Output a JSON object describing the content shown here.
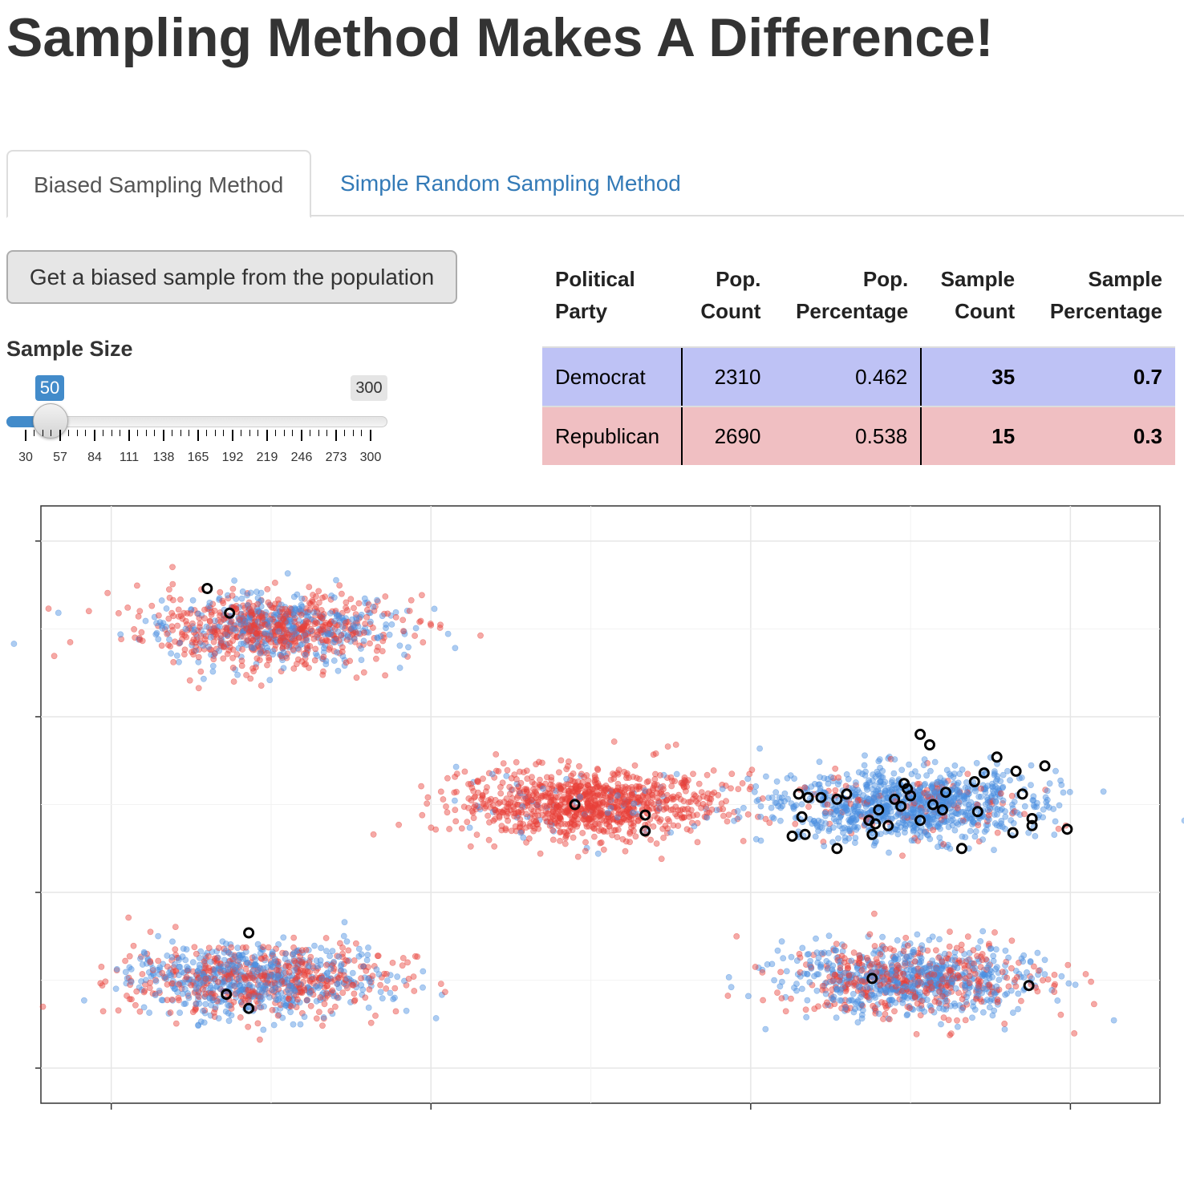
{
  "page": {
    "title": "Sampling Method Makes A Difference!"
  },
  "tabs": [
    {
      "label": "Biased Sampling Method",
      "active": true
    },
    {
      "label": "Simple Random Sampling Method",
      "active": false
    }
  ],
  "controls": {
    "button_label": "Get a biased sample from the population",
    "slider": {
      "label": "Sample Size",
      "value": 50,
      "value_text": "50",
      "max_text": "300",
      "min": 30,
      "max": 300,
      "tick_labels": [
        "30",
        "57",
        "84",
        "111",
        "138",
        "165",
        "192",
        "219",
        "246",
        "273",
        "300"
      ]
    }
  },
  "table": {
    "headers": [
      [
        "Political",
        "Party"
      ],
      [
        "Pop.",
        "Count"
      ],
      [
        "Pop.",
        "Percentage"
      ],
      [
        "Sample",
        "Count"
      ],
      [
        "Sample",
        "Percentage"
      ]
    ],
    "rows": [
      {
        "party": "Democrat",
        "pop_count": "2310",
        "pop_pct": "0.462",
        "sample_count": "35",
        "sample_pct": "0.7",
        "color": "#bec2f5"
      },
      {
        "party": "Republican",
        "pop_count": "2690",
        "pop_pct": "0.538",
        "sample_count": "15",
        "sample_pct": "0.3",
        "color": "#f0bfc2"
      }
    ]
  },
  "chart_data": {
    "type": "scatter",
    "title": "",
    "xlabel": "",
    "ylabel": "",
    "xlim": [
      -0.22,
      3.28
    ],
    "ylim": [
      -0.2,
      3.2
    ],
    "x_gridlines": [
      0,
      1,
      2,
      3
    ],
    "y_gridlines": [
      0,
      1,
      2,
      3
    ],
    "grid": true,
    "tick_labels_shown": false,
    "colors": {
      "democrat": "#4a8de0",
      "republican": "#e8413a",
      "sample_outline": "#000000"
    },
    "clusters": [
      {
        "center": [
          0.5,
          2.5
        ],
        "republican_share": 0.6
      },
      {
        "center": [
          1.5,
          1.5
        ],
        "republican_share": 0.92
      },
      {
        "center": [
          2.5,
          1.5
        ],
        "republican_share": 0.1
      },
      {
        "center": [
          0.45,
          0.5
        ],
        "republican_share": 0.45
      },
      {
        "center": [
          2.5,
          0.5
        ],
        "republican_share": 0.35
      }
    ],
    "sampled_points": [
      [
        0.3,
        2.73
      ],
      [
        0.37,
        2.59
      ],
      [
        1.45,
        1.5
      ],
      [
        2.53,
        1.9
      ],
      [
        2.56,
        1.84
      ],
      [
        2.77,
        1.77
      ],
      [
        2.61,
        1.57
      ],
      [
        2.49,
        1.59
      ],
      [
        2.48,
        1.62
      ],
      [
        2.5,
        1.55
      ],
      [
        2.47,
        1.49
      ],
      [
        2.4,
        1.47
      ],
      [
        2.38,
        1.33
      ],
      [
        2.22,
        1.54
      ],
      [
        2.3,
        1.56
      ],
      [
        2.27,
        1.53
      ],
      [
        2.18,
        1.54
      ],
      [
        2.15,
        1.56
      ],
      [
        2.16,
        1.43
      ],
      [
        2.17,
        1.33
      ],
      [
        2.13,
        1.32
      ],
      [
        2.37,
        1.41
      ],
      [
        2.39,
        1.39
      ],
      [
        2.53,
        1.41
      ],
      [
        2.57,
        1.5
      ],
      [
        2.6,
        1.47
      ],
      [
        2.71,
        1.46
      ],
      [
        2.82,
        1.34
      ],
      [
        2.88,
        1.38
      ],
      [
        2.88,
        1.42
      ],
      [
        2.85,
        1.56
      ],
      [
        2.7,
        1.63
      ],
      [
        2.73,
        1.68
      ],
      [
        2.83,
        1.69
      ],
      [
        2.92,
        1.72
      ],
      [
        2.99,
        1.36
      ],
      [
        2.66,
        1.25
      ],
      [
        1.67,
        1.44
      ],
      [
        1.67,
        1.35
      ],
      [
        2.27,
        1.25
      ],
      [
        2.43,
        1.38
      ],
      [
        2.45,
        1.53
      ],
      [
        0.43,
        0.77
      ],
      [
        0.36,
        0.42
      ],
      [
        0.43,
        0.34
      ],
      [
        2.38,
        0.51
      ],
      [
        2.87,
        0.47
      ]
    ]
  }
}
